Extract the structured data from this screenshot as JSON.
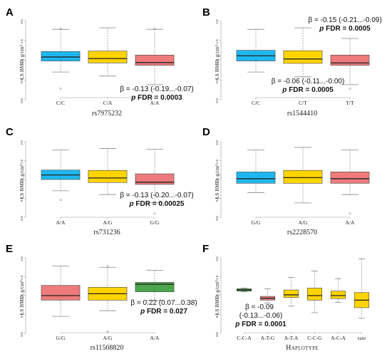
{
  "colors": {
    "cyan": "#1EB8F0",
    "yellow": "#FFD400",
    "red": "#EE7B7B",
    "green": "#4CA64C",
    "outline": "#444444",
    "whisker": "#888888",
    "axis": "#999999"
  },
  "chart_data": [
    {
      "panel": "A",
      "type": "box",
      "ylabel": "LS BMD, g/cm²",
      "ylim": [
        0,
        2.0
      ],
      "yticks": [
        "0.0",
        "0.5",
        "1.0",
        "1.5",
        "2.0"
      ],
      "xlabel": "rs7975232",
      "categories": [
        "C/C",
        "C/A",
        "A/A"
      ],
      "box_colors": [
        "cyan",
        "yellow",
        "red"
      ],
      "boxes": [
        {
          "min": 0.7,
          "q1": 0.98,
          "median": 1.08,
          "q3": 1.22,
          "max": 1.78,
          "outliers": [
            0.28,
            1.8
          ]
        },
        {
          "min": 0.6,
          "q1": 0.93,
          "median": 1.04,
          "q3": 1.23,
          "max": 1.82,
          "outliers": []
        },
        {
          "min": 0.38,
          "q1": 0.87,
          "median": 0.94,
          "q3": 1.13,
          "max": 1.78,
          "outliers": [
            1.8
          ]
        }
      ],
      "annotation": {
        "beta": "β = -0.13 (-0.19...-0.07)",
        "fdr_label": "p",
        "fdr_text": " FDR = 0.0003"
      }
    },
    {
      "panel": "B",
      "type": "box",
      "ylabel": "LS BMD, g/cm²",
      "ylim": [
        0,
        2.0
      ],
      "yticks": [
        "0.0",
        "0.5",
        "1.0",
        "1.5",
        "2.0"
      ],
      "xlabel": "rs1544410",
      "categories": [
        "C/C",
        "C/T",
        "T/T"
      ],
      "box_colors": [
        "cyan",
        "yellow",
        "red"
      ],
      "boxes": [
        {
          "min": 0.7,
          "q1": 0.98,
          "median": 1.11,
          "q3": 1.25,
          "max": 1.78,
          "outliers": []
        },
        {
          "min": 0.58,
          "q1": 0.92,
          "median": 1.03,
          "q3": 1.24,
          "max": 1.82,
          "outliers": []
        },
        {
          "min": 0.38,
          "q1": 0.87,
          "median": 0.93,
          "q3": 1.13,
          "max": 1.55,
          "outliers": [
            0.28
          ]
        }
      ],
      "annotation_top": {
        "beta": "β = -0.15 (-0.21...-0.09)",
        "fdr_label": "p",
        "fdr_text": " FDR = 0.0005"
      },
      "annotation": {
        "beta": "β = -0.06 (-0.11...-0.00)",
        "fdr_label": "p",
        "fdr_text": " FDR = 0.0005"
      }
    },
    {
      "panel": "C",
      "type": "box",
      "ylabel": "LS BMD, g/cm²",
      "ylim": [
        0,
        2.0
      ],
      "yticks": [
        "0.0",
        "0.5",
        "1.0",
        "1.5",
        "2.0"
      ],
      "xlabel": "rs731236",
      "categories": [
        "A/A",
        "A/G",
        "G/G"
      ],
      "box_colors": [
        "cyan",
        "yellow",
        "red"
      ],
      "boxes": [
        {
          "min": 0.7,
          "q1": 1.0,
          "median": 1.12,
          "q3": 1.25,
          "max": 1.78,
          "outliers": [
            0.46
          ]
        },
        {
          "min": 0.6,
          "q1": 0.92,
          "median": 1.04,
          "q3": 1.24,
          "max": 1.82,
          "outliers": []
        },
        {
          "min": 0.38,
          "q1": 0.87,
          "median": 0.93,
          "q3": 1.15,
          "max": 1.8,
          "outliers": [
            0.1
          ]
        }
      ],
      "annotation": {
        "beta": "β = -0.13 (-0.20...-0.07)",
        "fdr_label": "p",
        "fdr_text": " FDR = 0.00025"
      }
    },
    {
      "panel": "D",
      "type": "box",
      "ylabel": "LS BMD, g/cm²",
      "ylim": [
        0,
        2.0
      ],
      "yticks": [
        "0.0",
        "0.5",
        "1.0",
        "1.5",
        "2.0"
      ],
      "xlabel": "rs2228570",
      "categories": [
        "G/G",
        "A/G",
        "A/A"
      ],
      "box_colors": [
        "cyan",
        "yellow",
        "red"
      ],
      "boxes": [
        {
          "min": 0.65,
          "q1": 0.9,
          "median": 1.02,
          "q3": 1.2,
          "max": 1.78,
          "outliers": []
        },
        {
          "min": 0.38,
          "q1": 0.9,
          "median": 1.05,
          "q3": 1.24,
          "max": 1.85,
          "outliers": []
        },
        {
          "min": 0.6,
          "q1": 0.9,
          "median": 1.02,
          "q3": 1.2,
          "max": 1.78,
          "outliers": [
            0.1
          ]
        }
      ],
      "annotation": null
    },
    {
      "panel": "E",
      "type": "box",
      "ylabel": "LS BMD, g/cm²",
      "ylim": [
        0,
        2.0
      ],
      "yticks": [
        "0.0",
        "0.5",
        "1.0",
        "1.5",
        "2.0"
      ],
      "xlabel": "rs11568820",
      "categories": [
        "G/G",
        "A/G",
        "A/A"
      ],
      "box_colors": [
        "red",
        "yellow",
        "green"
      ],
      "boxes": [
        {
          "min": 0.45,
          "q1": 0.88,
          "median": 1.0,
          "q3": 1.27,
          "max": 1.78,
          "outliers": []
        },
        {
          "min": 0.6,
          "q1": 0.88,
          "median": 1.05,
          "q3": 1.22,
          "max": 1.75,
          "outliers": [
            1.78,
            0.05
          ]
        },
        {
          "min": 0.88,
          "q1": 1.1,
          "median": 1.3,
          "q3": 1.35,
          "max": 1.67,
          "outliers": []
        }
      ],
      "annotation": {
        "beta": "β = 0.22 (0.07...0.38)",
        "fdr_label": "p",
        "fdr_text": " FDR = 0.027"
      }
    },
    {
      "panel": "F",
      "type": "box",
      "ylabel": "LS BMD, g/cm²",
      "ylim": [
        0,
        2.0
      ],
      "yticks": [
        "0.0",
        "0.5",
        "1.0",
        "1.5",
        "2.0"
      ],
      "xlabel": "Haplotype",
      "categories": [
        "C-C-A",
        "A-T-G",
        "A-T-A",
        "C-C-G",
        "A-C-A",
        "rare"
      ],
      "box_colors": [
        "green",
        "red",
        "yellow",
        "yellow",
        "yellow",
        "yellow"
      ],
      "boxes": [
        {
          "min": 1.1,
          "q1": 1.12,
          "median": 1.15,
          "q3": 1.18,
          "max": 1.2,
          "outliers": []
        },
        {
          "min": 0.8,
          "q1": 0.88,
          "median": 0.93,
          "q3": 0.98,
          "max": 1.18,
          "outliers": []
        },
        {
          "min": 0.72,
          "q1": 0.95,
          "median": 1.02,
          "q3": 1.15,
          "max": 1.48,
          "outliers": []
        },
        {
          "min": 0.55,
          "q1": 0.88,
          "median": 1.0,
          "q3": 1.2,
          "max": 1.65,
          "outliers": []
        },
        {
          "min": 0.82,
          "q1": 0.92,
          "median": 1.0,
          "q3": 1.12,
          "max": 1.45,
          "outliers": []
        },
        {
          "min": 0.4,
          "q1": 0.68,
          "median": 0.88,
          "q3": 1.08,
          "max": 1.97,
          "outliers": []
        }
      ],
      "annotation_lines": [
        "β = -0.09",
        "(-0.13...-0.06)"
      ],
      "annotation": {
        "beta": "",
        "fdr_label": "p",
        "fdr_text": " FDR = 0.0001"
      }
    }
  ]
}
